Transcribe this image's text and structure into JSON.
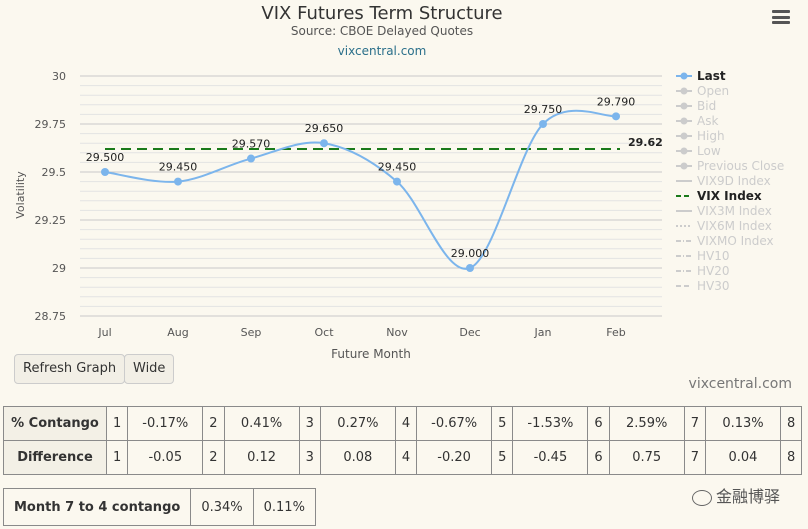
{
  "chart_data": {
    "type": "line",
    "title": "VIX Futures Term Structure",
    "subtitle": "Source: CBOE Delayed Quotes",
    "site": "vixcentral.com",
    "xlabel": "Future Month",
    "ylabel": "Volatility",
    "ylim": [
      28.75,
      30
    ],
    "y_ticks": [
      "30",
      "29.75",
      "29.5",
      "29.25",
      "29",
      "28.75"
    ],
    "categories": [
      "Jul",
      "Aug",
      "Sep",
      "Oct",
      "Nov",
      "Dec",
      "Jan",
      "Feb"
    ],
    "series": [
      {
        "name": "Last",
        "values": [
          29.5,
          29.45,
          29.57,
          29.65,
          29.45,
          29.0,
          29.75,
          29.79
        ],
        "labels": [
          "29.500",
          "29.450",
          "29.570",
          "29.650",
          "29.450",
          "29.000",
          "29.750",
          "29.790"
        ],
        "color": "#7cb5ec"
      },
      {
        "name": "VIX Index",
        "value": 29.62,
        "label": "29.62",
        "color": "#1a7a1a"
      }
    ],
    "legend": [
      {
        "name": "Last",
        "active": true,
        "marker": "circle-line"
      },
      {
        "name": "Open",
        "active": false,
        "marker": "diamond-line"
      },
      {
        "name": "Bid",
        "active": false,
        "marker": "square-line"
      },
      {
        "name": "Ask",
        "active": false,
        "marker": "triangle-line"
      },
      {
        "name": "High",
        "active": false,
        "marker": "triangle-down-line"
      },
      {
        "name": "Low",
        "active": false,
        "marker": "circle-line"
      },
      {
        "name": "Previous Close",
        "active": false,
        "marker": "diamond-line"
      },
      {
        "name": "VIX9D Index",
        "active": false,
        "marker": "solid"
      },
      {
        "name": "VIX Index",
        "active": true,
        "marker": "dash-green"
      },
      {
        "name": "VIX3M Index",
        "active": false,
        "marker": "solid"
      },
      {
        "name": "VIX6M Index",
        "active": false,
        "marker": "dot"
      },
      {
        "name": "VIXMO Index",
        "active": false,
        "marker": "dashdot"
      },
      {
        "name": "HV10",
        "active": false,
        "marker": "dashdot"
      },
      {
        "name": "HV20",
        "active": false,
        "marker": "dashdot"
      },
      {
        "name": "HV30",
        "active": false,
        "marker": "dash"
      }
    ],
    "legend_position": "right",
    "grid": true
  },
  "controls": {
    "refresh_label": "Refresh Graph",
    "wide_label": "Wide",
    "credit": "vixcentral.com"
  },
  "contango_table": {
    "rows": [
      {
        "label": "% Contango",
        "cells": [
          [
            "1",
            "-0.17%"
          ],
          [
            "2",
            "0.41%"
          ],
          [
            "3",
            "0.27%"
          ],
          [
            "4",
            "-0.67%"
          ],
          [
            "5",
            "-1.53%"
          ],
          [
            "6",
            "2.59%"
          ],
          [
            "7",
            "0.13%"
          ]
        ],
        "tail": "8"
      },
      {
        "label": "Difference",
        "cells": [
          [
            "1",
            "-0.05"
          ],
          [
            "2",
            "0.12"
          ],
          [
            "3",
            "0.08"
          ],
          [
            "4",
            "-0.20"
          ],
          [
            "5",
            "-0.45"
          ],
          [
            "6",
            "0.75"
          ],
          [
            "7",
            "0.04"
          ]
        ],
        "tail": "8"
      }
    ]
  },
  "month74": {
    "label": "Month 7 to 4 contango",
    "values": [
      "0.34%",
      "0.11%"
    ]
  },
  "watermark": "金融博驿"
}
